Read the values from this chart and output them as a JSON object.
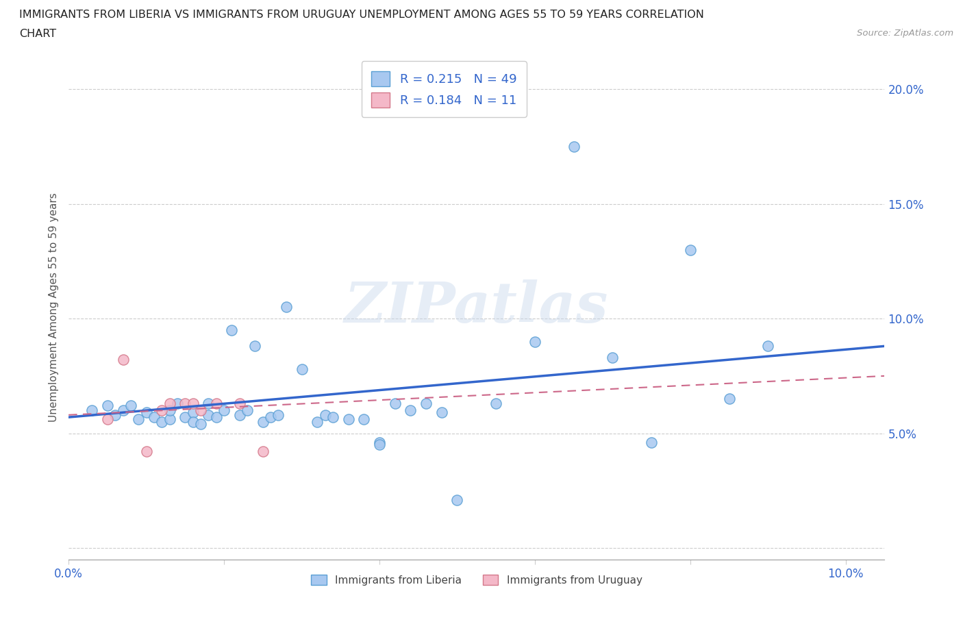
{
  "title_line1": "IMMIGRANTS FROM LIBERIA VS IMMIGRANTS FROM URUGUAY UNEMPLOYMENT AMONG AGES 55 TO 59 YEARS CORRELATION",
  "title_line2": "CHART",
  "source_text": "Source: ZipAtlas.com",
  "ylabel": "Unemployment Among Ages 55 to 59 years",
  "watermark": "ZIPatlas",
  "xlim": [
    0.0,
    0.105
  ],
  "ylim": [
    -0.005,
    0.215
  ],
  "x_ticks": [
    0.0,
    0.02,
    0.04,
    0.06,
    0.08,
    0.1
  ],
  "y_ticks": [
    0.0,
    0.05,
    0.1,
    0.15,
    0.2
  ],
  "y_tick_labels": [
    "",
    "5.0%",
    "10.0%",
    "15.0%",
    "20.0%"
  ],
  "liberia_color": "#a8c8f0",
  "liberia_edge": "#5a9fd4",
  "uruguay_color": "#f4b8c8",
  "uruguay_edge": "#d4788a",
  "liberia_R": 0.215,
  "liberia_N": 49,
  "uruguay_R": 0.184,
  "uruguay_N": 11,
  "legend_label1": "Immigrants from Liberia",
  "legend_label2": "Immigrants from Uruguay",
  "liberia_x": [
    0.003,
    0.005,
    0.006,
    0.007,
    0.008,
    0.009,
    0.01,
    0.011,
    0.012,
    0.013,
    0.013,
    0.014,
    0.015,
    0.016,
    0.016,
    0.017,
    0.018,
    0.018,
    0.019,
    0.02,
    0.021,
    0.022,
    0.023,
    0.024,
    0.025,
    0.026,
    0.027,
    0.028,
    0.03,
    0.032,
    0.033,
    0.034,
    0.036,
    0.038,
    0.04,
    0.04,
    0.042,
    0.044,
    0.046,
    0.048,
    0.05,
    0.055,
    0.06,
    0.065,
    0.07,
    0.075,
    0.08,
    0.085,
    0.09
  ],
  "liberia_y": [
    0.06,
    0.062,
    0.058,
    0.06,
    0.062,
    0.056,
    0.059,
    0.057,
    0.055,
    0.056,
    0.06,
    0.063,
    0.057,
    0.059,
    0.055,
    0.054,
    0.058,
    0.063,
    0.057,
    0.06,
    0.095,
    0.058,
    0.06,
    0.088,
    0.055,
    0.057,
    0.058,
    0.105,
    0.078,
    0.055,
    0.058,
    0.057,
    0.056,
    0.056,
    0.046,
    0.045,
    0.063,
    0.06,
    0.063,
    0.059,
    0.021,
    0.063,
    0.09,
    0.175,
    0.083,
    0.046,
    0.13,
    0.065,
    0.088
  ],
  "uruguay_x": [
    0.005,
    0.007,
    0.01,
    0.012,
    0.013,
    0.015,
    0.016,
    0.017,
    0.019,
    0.022,
    0.025
  ],
  "uruguay_y": [
    0.056,
    0.082,
    0.042,
    0.06,
    0.063,
    0.063,
    0.063,
    0.06,
    0.063,
    0.063,
    0.042
  ],
  "liberia_trend_x0": 0.0,
  "liberia_trend_x1": 0.105,
  "liberia_trend_y0": 0.057,
  "liberia_trend_y1": 0.088,
  "uruguay_trend_x0": 0.0,
  "uruguay_trend_x1": 0.105,
  "uruguay_trend_y0": 0.058,
  "uruguay_trend_y1": 0.075
}
